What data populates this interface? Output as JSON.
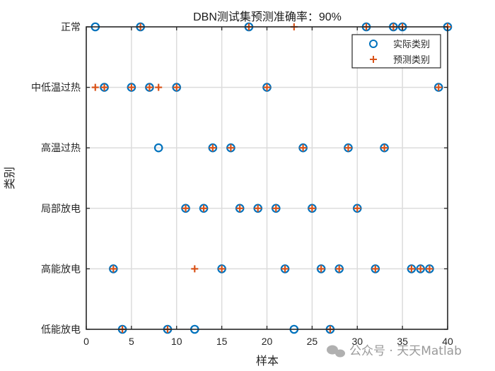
{
  "chart_data": {
    "type": "scatter",
    "title": "DBN测试集预测准确率：90%",
    "xlabel": "样本",
    "ylabel": "类别",
    "xlim": [
      0,
      40
    ],
    "xticks": [
      0,
      5,
      10,
      15,
      20,
      25,
      30,
      35,
      40
    ],
    "ylim": [
      1,
      6
    ],
    "yticklabels": [
      "低能放电",
      "高能放电",
      "局部放电",
      "高温过热",
      "中低温过热",
      "正常"
    ],
    "grid": true,
    "legend_position": "northeast",
    "accuracy_percent": 90,
    "series": [
      {
        "name": "实际类别",
        "marker": "circle",
        "color": "#0072BD",
        "x": [
          1,
          2,
          3,
          4,
          5,
          6,
          7,
          8,
          9,
          10,
          11,
          12,
          13,
          14,
          15,
          16,
          17,
          18,
          19,
          20,
          21,
          22,
          23,
          24,
          25,
          26,
          27,
          28,
          29,
          30,
          31,
          32,
          33,
          34,
          35,
          36,
          37,
          38,
          39,
          40
        ],
        "values": [
          6,
          5,
          2,
          1,
          5,
          6,
          5,
          4,
          1,
          5,
          3,
          1,
          3,
          4,
          2,
          4,
          3,
          6,
          3,
          5,
          3,
          2,
          1,
          4,
          3,
          2,
          1,
          2,
          4,
          3,
          6,
          2,
          4,
          6,
          6,
          2,
          2,
          2,
          5,
          6
        ]
      },
      {
        "name": "预测类别",
        "marker": "plus",
        "color": "#D95319",
        "x": [
          1,
          2,
          3,
          4,
          5,
          6,
          7,
          8,
          9,
          10,
          11,
          12,
          13,
          14,
          15,
          16,
          17,
          18,
          19,
          20,
          21,
          22,
          23,
          24,
          25,
          26,
          27,
          28,
          29,
          30,
          31,
          32,
          33,
          34,
          35,
          36,
          37,
          38,
          39,
          40
        ],
        "values": [
          5,
          5,
          2,
          1,
          5,
          6,
          5,
          5,
          1,
          5,
          3,
          2,
          3,
          4,
          2,
          4,
          3,
          6,
          3,
          5,
          3,
          2,
          6,
          4,
          3,
          2,
          1,
          2,
          4,
          3,
          6,
          2,
          4,
          6,
          6,
          2,
          2,
          2,
          5,
          6
        ]
      }
    ]
  },
  "watermark": "公众号 · 天天Matlab"
}
